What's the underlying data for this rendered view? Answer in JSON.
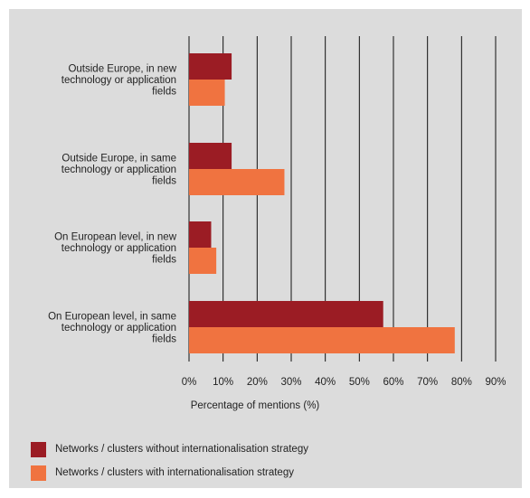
{
  "chart_data": {
    "type": "bar",
    "orientation": "horizontal",
    "categories": [
      [
        "Outside Europe, in new",
        "technology or application",
        "fields"
      ],
      [
        "Outside Europe, in same",
        "technology or application",
        "fields"
      ],
      [
        "On European level, in new",
        "technology or application",
        "fields"
      ],
      [
        "On European level, in same",
        "technology or application",
        "fields"
      ]
    ],
    "series": [
      {
        "name": "Networks / clusters without internationalisation strategy",
        "color": "#9b1c24",
        "values": [
          12.5,
          12.5,
          6.5,
          57
        ]
      },
      {
        "name": "Networks / clusters with internationalisation strategy",
        "color": "#f07340",
        "values": [
          10.5,
          28,
          8,
          78
        ]
      }
    ],
    "xlim": [
      0,
      90
    ],
    "xticks": [
      "0%",
      "10%",
      "20%",
      "30%",
      "40%",
      "50%",
      "60%",
      "70%",
      "80%",
      "90%"
    ],
    "xlabel": "Percentage of mentions (%)",
    "grid": "vertical",
    "legend_position": "bottom-left"
  }
}
